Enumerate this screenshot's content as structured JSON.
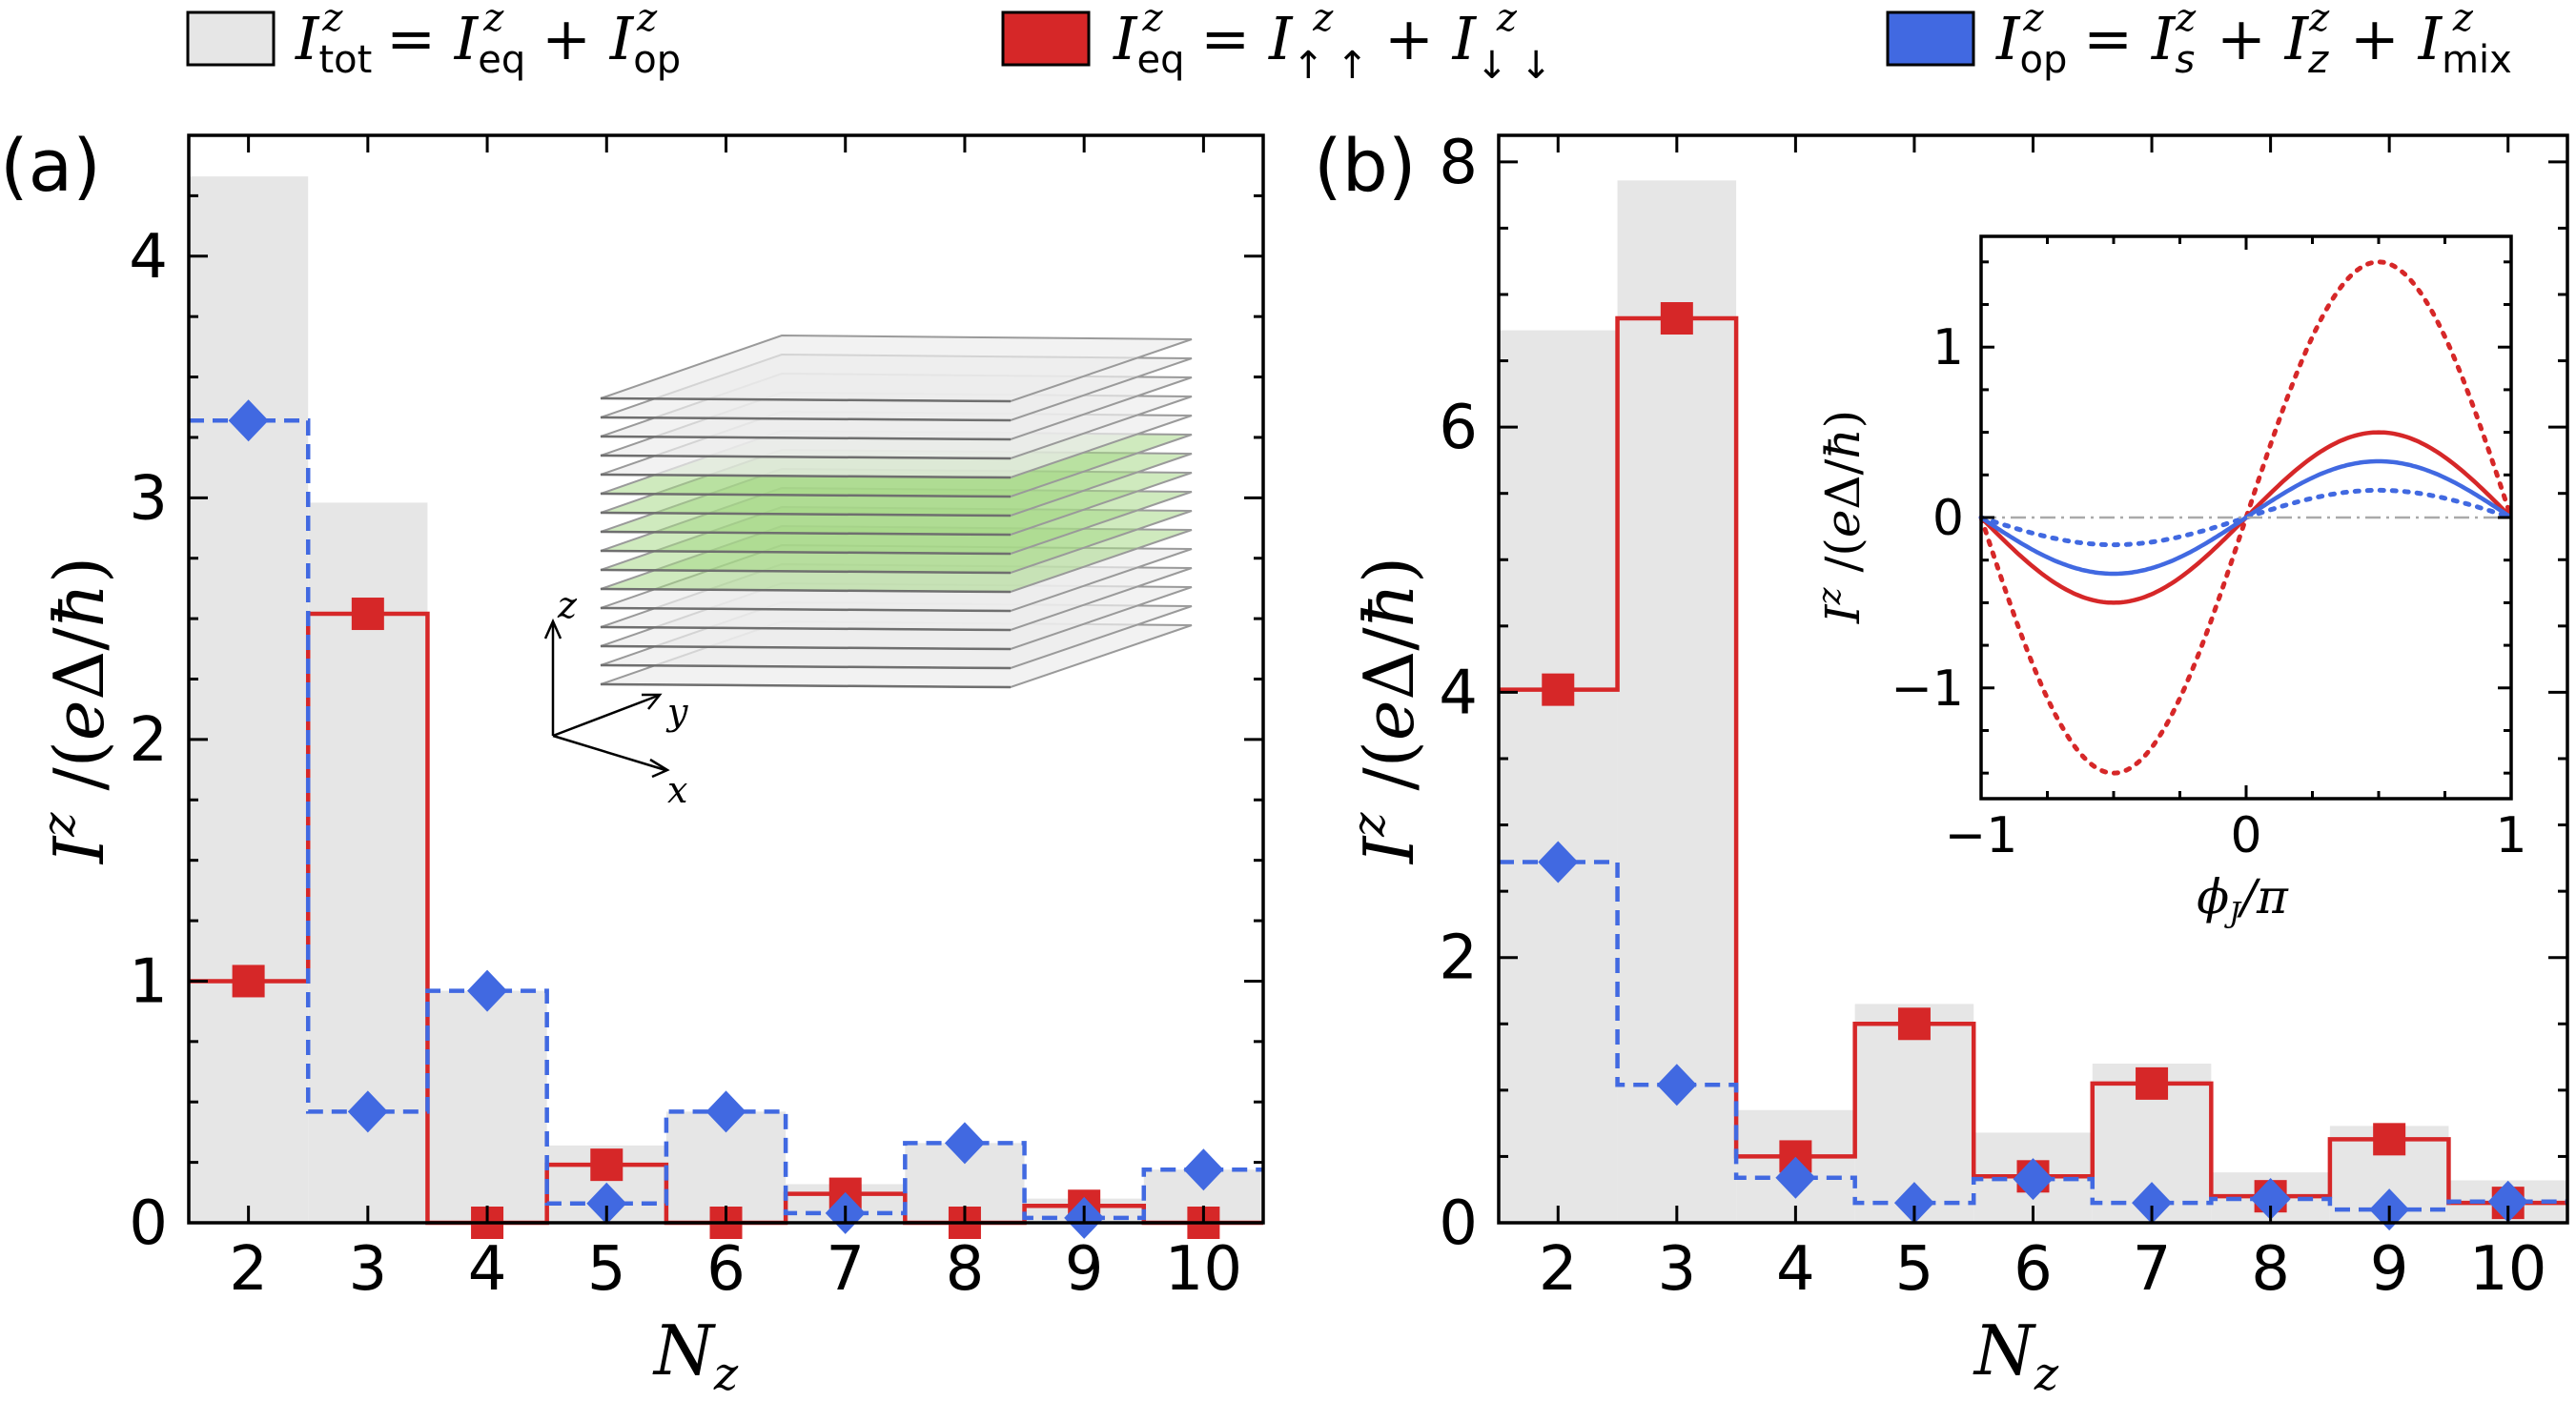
{
  "colors": {
    "tot": "#e6e6e6",
    "eq": "#d62728",
    "op": "#4169e1",
    "guide": "#aaaaaa",
    "layer_green": "#a8d889",
    "layer_gray": "#ececec"
  },
  "legend": {
    "tot": {
      "I": "I",
      "sup": "z",
      "sub": "tot",
      "eq_sign": " = ",
      "t1": "I",
      "t1_sup": "z",
      "t1_sub": "eq",
      "plus": " + ",
      "t2": "I",
      "t2_sup": "z",
      "t2_sub": "op"
    },
    "eq": {
      "I": "I",
      "sup": "z",
      "sub": "eq",
      "eq_sign": " = ",
      "t1": "I",
      "t1_sup": "z",
      "t1_sub": "↑ ↑",
      "plus": " + ",
      "t2": "I",
      "t2_sup": "z",
      "t2_sub": "↓ ↓"
    },
    "op": {
      "I": "I",
      "sup": "z",
      "sub": "op",
      "eq_sign": " = ",
      "t1": "I",
      "t1_sup": "z",
      "t1_sub": "s",
      "plus1": " + ",
      "t2": "I",
      "t2_sup": "z",
      "t2_sub": "z",
      "plus2": " + ",
      "t3": "I",
      "t3_sup": "z",
      "t3_sub": "mix"
    }
  },
  "inset_schematic": {
    "axis_z": "z",
    "axis_y": "y",
    "axis_x": "x"
  },
  "chart_data": [
    {
      "panel": "(a)",
      "type": "step+bar",
      "xlabel": "N_z",
      "ylabel": "I^z /(eΔ/ħ)",
      "x": [
        2,
        3,
        4,
        5,
        6,
        7,
        8,
        9,
        10
      ],
      "xlim": [
        1.5,
        10.5
      ],
      "ylim": [
        0,
        4.5
      ],
      "yticks": [
        0,
        1,
        2,
        3,
        4
      ],
      "series": [
        {
          "name": "I^z_tot = I^z_eq + I^z_op",
          "style": "bar",
          "values": [
            4.33,
            2.98,
            0.96,
            0.32,
            0.46,
            0.16,
            0.33,
            0.1,
            0.22
          ]
        },
        {
          "name": "I^z_eq = I^z_↑↑ + I^z_↓↓",
          "style": "step-solid-square",
          "values": [
            1.0,
            2.52,
            0.0,
            0.24,
            0.0,
            0.12,
            0.0,
            0.07,
            0.0
          ]
        },
        {
          "name": "I^z_op = I^z_s + I^z_z + I^z_mix",
          "style": "step-dashed-diamond",
          "values": [
            3.32,
            0.46,
            0.96,
            0.08,
            0.46,
            0.04,
            0.33,
            0.02,
            0.22
          ]
        }
      ]
    },
    {
      "panel": "(b)",
      "type": "step+bar",
      "xlabel": "N_z",
      "ylabel": "I^z /(eΔ/ħ)",
      "x": [
        2,
        3,
        4,
        5,
        6,
        7,
        8,
        9,
        10
      ],
      "xlim": [
        1.5,
        10.5
      ],
      "ylim": [
        0,
        8.2
      ],
      "yticks": [
        0,
        2,
        4,
        6,
        8
      ],
      "series": [
        {
          "name": "I^z_tot = I^z_eq + I^z_op",
          "style": "bar",
          "values": [
            6.73,
            7.86,
            0.85,
            1.65,
            0.68,
            1.2,
            0.38,
            0.73,
            0.32
          ]
        },
        {
          "name": "I^z_eq = I^z_↑↑ + I^z_↓↓",
          "style": "step-solid-square",
          "values": [
            4.02,
            6.82,
            0.5,
            1.5,
            0.35,
            1.05,
            0.2,
            0.63,
            0.15
          ]
        },
        {
          "name": "I^z_op = I^z_s + I^z_z + I^z_mix",
          "style": "step-dashed-diamond",
          "values": [
            2.72,
            1.04,
            0.34,
            0.15,
            0.33,
            0.15,
            0.18,
            0.1,
            0.16
          ]
        }
      ],
      "inset": {
        "type": "line",
        "xlabel": "ϕ_J/π",
        "ylabel": "I^z /(eΔ/ħ)",
        "xlim": [
          -1,
          1
        ],
        "ylim": [
          -1.65,
          1.65
        ],
        "xticks": [
          -1,
          0,
          1
        ],
        "yticks": [
          -1,
          0,
          1
        ],
        "curves": [
          {
            "name": "red dotted",
            "color": "eq",
            "dash": "dot",
            "amplitude": 1.5,
            "harmonic2": 0.0
          },
          {
            "name": "red solid",
            "color": "eq",
            "dash": "solid",
            "amplitude": 0.5,
            "harmonic2": 0.0
          },
          {
            "name": "blue solid",
            "color": "op",
            "dash": "solid",
            "amplitude": 0.33,
            "harmonic2": 0.0
          },
          {
            "name": "blue dotted",
            "color": "op",
            "dash": "dot",
            "amplitude": 0.16,
            "harmonic2": 0.0
          },
          {
            "name": "zero line",
            "color": "guide",
            "dash": "dashdot",
            "amplitude": 0.0,
            "harmonic2": 0.0
          }
        ]
      }
    }
  ]
}
